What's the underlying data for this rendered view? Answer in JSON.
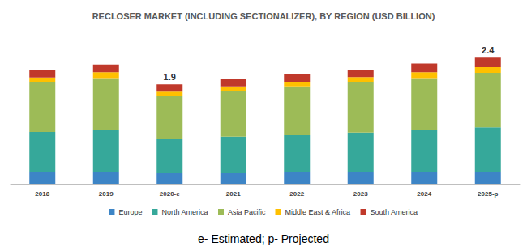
{
  "chart_data": {
    "type": "bar",
    "title": "RECLOSER MARKET (INCLUDING SECTIONALIZER), BY REGION (USD BILLION)",
    "categories": [
      "2018",
      "2019",
      "2020-e",
      "2021",
      "2022",
      "2023",
      "2024",
      "2025-p"
    ],
    "series": [
      {
        "name": "Europe",
        "color": "#3d85c6",
        "values": [
          0.23,
          0.23,
          0.2,
          0.2,
          0.22,
          0.22,
          0.23,
          0.23
        ]
      },
      {
        "name": "North America",
        "color": "#36a89a",
        "values": [
          0.76,
          0.8,
          0.65,
          0.7,
          0.71,
          0.76,
          0.79,
          0.85
        ]
      },
      {
        "name": "Asia Pacific",
        "color": "#9dbb57",
        "values": [
          0.96,
          0.99,
          0.82,
          0.87,
          0.93,
          0.97,
          1.0,
          1.04
        ]
      },
      {
        "name": "Middle East & Africa",
        "color": "#ffc000",
        "values": [
          0.08,
          0.11,
          0.09,
          0.09,
          0.09,
          0.09,
          0.11,
          0.11
        ]
      },
      {
        "name": "South America",
        "color": "#c0392b",
        "values": [
          0.15,
          0.15,
          0.14,
          0.15,
          0.14,
          0.14,
          0.17,
          0.18
        ]
      }
    ],
    "annotations": [
      {
        "category": "2020-e",
        "label": "1.9"
      },
      {
        "category": "2025-p",
        "label": "2.4"
      }
    ],
    "footnote": "e- Estimated; p- Projected",
    "ylim": [
      0,
      2.6
    ],
    "stacked": true,
    "grid": false,
    "legend": "bottom",
    "tick_labels": "x"
  }
}
